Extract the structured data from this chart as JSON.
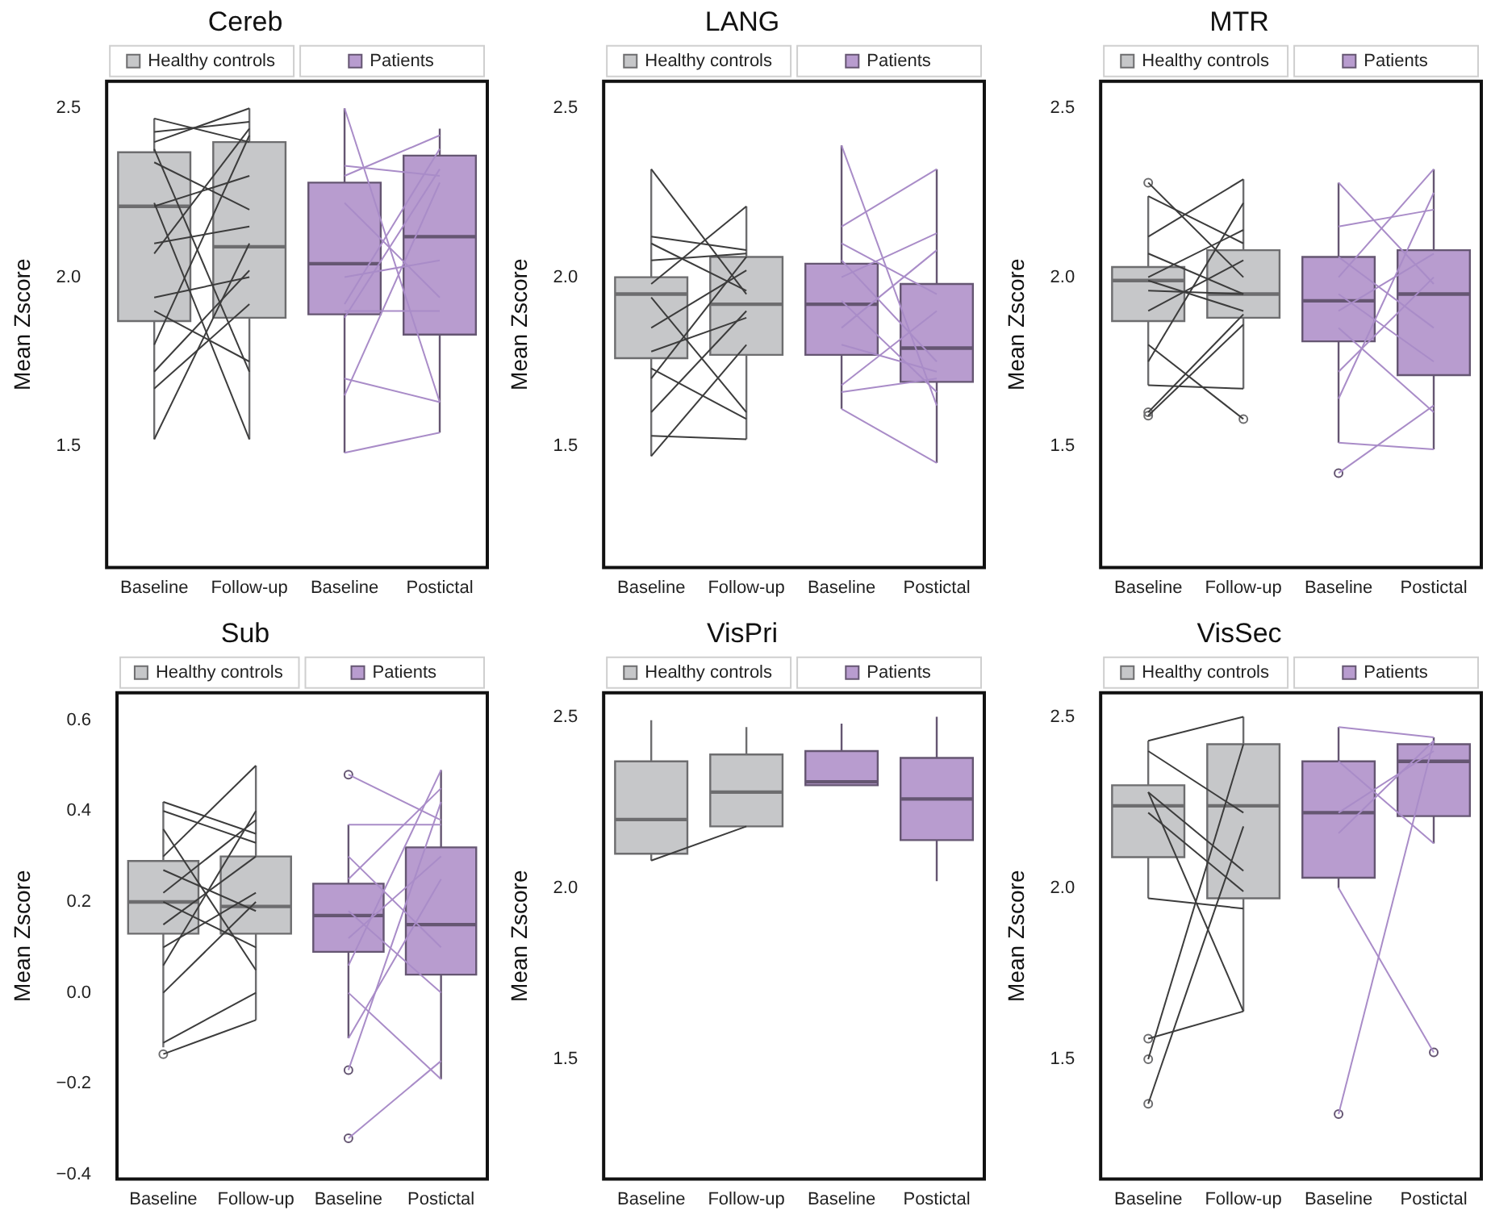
{
  "chart_data": [
    {
      "type": "box",
      "legend": "top",
      "title": "Cereb",
      "ylabel": "Mean Zscore",
      "categories": [
        "Baseline",
        "Follow-up",
        "Baseline",
        "Postictal"
      ],
      "ylim": [
        1.14,
        2.58
      ],
      "yticks": [
        1.5,
        {
          "value": 2,
          "label": "2.0"
        },
        2.5
      ],
      "series": [
        {
          "name": "Healthy controls",
          "color": "#c6c7c9",
          "boxes": [
            {
              "low": 1.52,
              "q1": 1.87,
              "median": 2.21,
              "q3": 2.37,
              "high": 2.47
            },
            {
              "low": 1.52,
              "q1": 1.88,
              "median": 2.09,
              "q3": 2.4,
              "high": 2.5
            },
            null,
            null
          ]
        },
        {
          "name": "Patients",
          "color": "#b89ccf",
          "boxes": [
            null,
            null,
            {
              "low": 1.48,
              "q1": 1.89,
              "median": 2.04,
              "q3": 2.28,
              "high": 2.5
            },
            {
              "low": 1.54,
              "q1": 1.83,
              "median": 2.12,
              "q3": 2.36,
              "high": 2.44
            }
          ]
        },
        {
          "type": "line",
          "color": "#3c3c3c",
          "values": [
            2.47,
            2.4,
            null,
            null
          ]
        },
        {
          "type": "line",
          "color": "#3c3c3c",
          "values": [
            2.43,
            2.46,
            null,
            null
          ]
        },
        {
          "type": "line",
          "color": "#3c3c3c",
          "values": [
            2.4,
            2.5,
            null,
            null
          ]
        },
        {
          "type": "line",
          "color": "#3c3c3c",
          "values": [
            2.38,
            1.72,
            null,
            null
          ]
        },
        {
          "type": "line",
          "color": "#3c3c3c",
          "values": [
            2.34,
            2.2,
            null,
            null
          ]
        },
        {
          "type": "line",
          "color": "#3c3c3c",
          "values": [
            2.22,
            1.52,
            null,
            null
          ]
        },
        {
          "type": "line",
          "color": "#3c3c3c",
          "values": [
            2.21,
            2.3,
            null,
            null
          ]
        },
        {
          "type": "line",
          "color": "#3c3c3c",
          "values": [
            2.1,
            2.15,
            null,
            null
          ]
        },
        {
          "type": "line",
          "color": "#3c3c3c",
          "values": [
            2.07,
            2.44,
            null,
            null
          ]
        },
        {
          "type": "line",
          "color": "#3c3c3c",
          "values": [
            1.94,
            2.0,
            null,
            null
          ]
        },
        {
          "type": "line",
          "color": "#3c3c3c",
          "values": [
            1.9,
            1.75,
            null,
            null
          ]
        },
        {
          "type": "line",
          "color": "#3c3c3c",
          "values": [
            1.8,
            2.42,
            null,
            null
          ]
        },
        {
          "type": "line",
          "color": "#3c3c3c",
          "values": [
            1.72,
            2.02,
            null,
            null
          ]
        },
        {
          "type": "line",
          "color": "#3c3c3c",
          "values": [
            1.67,
            1.92,
            null,
            null
          ]
        },
        {
          "type": "line",
          "color": "#3c3c3c",
          "values": [
            1.52,
            2.1,
            null,
            null
          ]
        },
        {
          "type": "line",
          "color": "#a98cc8",
          "values": [
            null,
            null,
            2.5,
            1.63
          ]
        },
        {
          "type": "line",
          "color": "#a98cc8",
          "values": [
            null,
            null,
            2.33,
            2.3
          ]
        },
        {
          "type": "line",
          "color": "#a98cc8",
          "values": [
            null,
            null,
            2.3,
            2.42
          ]
        },
        {
          "type": "line",
          "color": "#a98cc8",
          "values": [
            null,
            null,
            2.22,
            1.94
          ]
        },
        {
          "type": "line",
          "color": "#a98cc8",
          "values": [
            null,
            null,
            2.0,
            2.05
          ]
        },
        {
          "type": "line",
          "color": "#a98cc8",
          "values": [
            null,
            null,
            1.92,
            2.38
          ]
        },
        {
          "type": "line",
          "color": "#a98cc8",
          "values": [
            null,
            null,
            1.9,
            1.9
          ]
        },
        {
          "type": "line",
          "color": "#a98cc8",
          "values": [
            null,
            null,
            1.88,
            2.32
          ]
        },
        {
          "type": "line",
          "color": "#a98cc8",
          "values": [
            null,
            null,
            1.7,
            1.63
          ]
        },
        {
          "type": "line",
          "color": "#a98cc8",
          "values": [
            null,
            null,
            1.65,
            2.28
          ]
        },
        {
          "type": "line",
          "color": "#a98cc8",
          "values": [
            null,
            null,
            1.48,
            1.54
          ]
        }
      ]
    },
    {
      "type": "box",
      "legend": "top",
      "title": "LANG",
      "ylabel": "Mean Zscore",
      "categories": [
        "Baseline",
        "Follow-up",
        "Baseline",
        "Postictal"
      ],
      "ylim": [
        1.14,
        2.58
      ],
      "yticks": [
        1.5,
        {
          "value": 2,
          "label": "2.0"
        },
        2.5
      ],
      "series": [
        {
          "name": "Healthy controls",
          "color": "#c6c7c9",
          "boxes": [
            {
              "low": 1.47,
              "q1": 1.76,
              "median": 1.95,
              "q3": 2.0,
              "high": 2.32
            },
            {
              "low": 1.52,
              "q1": 1.77,
              "median": 1.92,
              "q3": 2.06,
              "high": 2.21
            },
            null,
            null
          ]
        },
        {
          "name": "Patients",
          "color": "#b89ccf",
          "boxes": [
            null,
            null,
            {
              "low": 1.61,
              "q1": 1.77,
              "median": 1.92,
              "q3": 2.04,
              "high": 2.39
            },
            {
              "low": 1.45,
              "q1": 1.69,
              "median": 1.79,
              "q3": 1.98,
              "high": 2.32
            }
          ]
        },
        {
          "type": "line",
          "color": "#3c3c3c",
          "values": [
            2.32,
            1.95,
            null,
            null
          ]
        },
        {
          "type": "line",
          "color": "#3c3c3c",
          "values": [
            2.12,
            2.08,
            null,
            null
          ]
        },
        {
          "type": "line",
          "color": "#3c3c3c",
          "values": [
            2.1,
            1.96,
            null,
            null
          ]
        },
        {
          "type": "line",
          "color": "#3c3c3c",
          "values": [
            2.05,
            2.07,
            null,
            null
          ]
        },
        {
          "type": "line",
          "color": "#3c3c3c",
          "values": [
            1.98,
            2.21,
            null,
            null
          ]
        },
        {
          "type": "line",
          "color": "#3c3c3c",
          "values": [
            1.94,
            1.6,
            null,
            null
          ]
        },
        {
          "type": "line",
          "color": "#3c3c3c",
          "values": [
            1.85,
            2.02,
            null,
            null
          ]
        },
        {
          "type": "line",
          "color": "#3c3c3c",
          "values": [
            1.78,
            1.88,
            null,
            null
          ]
        },
        {
          "type": "line",
          "color": "#3c3c3c",
          "values": [
            1.73,
            1.58,
            null,
            null
          ]
        },
        {
          "type": "line",
          "color": "#3c3c3c",
          "values": [
            1.7,
            2.06,
            null,
            null
          ]
        },
        {
          "type": "line",
          "color": "#3c3c3c",
          "values": [
            1.6,
            1.9,
            null,
            null
          ]
        },
        {
          "type": "line",
          "color": "#3c3c3c",
          "values": [
            1.53,
            1.52,
            null,
            null
          ]
        },
        {
          "type": "line",
          "color": "#3c3c3c",
          "values": [
            1.47,
            1.8,
            null,
            null
          ]
        },
        {
          "type": "line",
          "color": "#a98cc8",
          "values": [
            null,
            null,
            2.39,
            1.62
          ]
        },
        {
          "type": "line",
          "color": "#a98cc8",
          "values": [
            null,
            null,
            2.15,
            2.32
          ]
        },
        {
          "type": "line",
          "color": "#a98cc8",
          "values": [
            null,
            null,
            2.1,
            1.95
          ]
        },
        {
          "type": "line",
          "color": "#a98cc8",
          "values": [
            null,
            null,
            2.05,
            1.75
          ]
        },
        {
          "type": "line",
          "color": "#a98cc8",
          "values": [
            null,
            null,
            2.0,
            2.13
          ]
        },
        {
          "type": "line",
          "color": "#a98cc8",
          "values": [
            null,
            null,
            1.93,
            1.66
          ]
        },
        {
          "type": "line",
          "color": "#a98cc8",
          "values": [
            null,
            null,
            1.85,
            2.08
          ]
        },
        {
          "type": "line",
          "color": "#a98cc8",
          "values": [
            null,
            null,
            1.8,
            1.72
          ]
        },
        {
          "type": "line",
          "color": "#a98cc8",
          "values": [
            null,
            null,
            1.68,
            1.9
          ]
        },
        {
          "type": "line",
          "color": "#a98cc8",
          "values": [
            null,
            null,
            1.66,
            1.7
          ]
        },
        {
          "type": "line",
          "color": "#a98cc8",
          "values": [
            null,
            null,
            1.61,
            1.45
          ]
        }
      ]
    },
    {
      "type": "box",
      "legend": "top",
      "title": "MTR",
      "ylabel": "Mean Zscore",
      "categories": [
        "Baseline",
        "Follow-up",
        "Baseline",
        "Postictal"
      ],
      "ylim": [
        1.14,
        2.58
      ],
      "yticks": [
        1.5,
        {
          "value": 2,
          "label": "2.0"
        },
        2.5
      ],
      "series": [
        {
          "name": "Healthy controls",
          "color": "#c6c7c9",
          "boxes": [
            {
              "low": 1.68,
              "q1": 1.87,
              "median": 1.99,
              "q3": 2.03,
              "high": 2.24,
              "outliers": [
                2.28,
                1.6,
                1.59
              ]
            },
            {
              "low": 1.67,
              "q1": 1.88,
              "median": 1.95,
              "q3": 2.08,
              "high": 2.29,
              "outliers": [
                1.58
              ]
            },
            null,
            null
          ]
        },
        {
          "name": "Patients",
          "color": "#b89ccf",
          "boxes": [
            null,
            null,
            {
              "low": 1.51,
              "q1": 1.81,
              "median": 1.93,
              "q3": 2.06,
              "high": 2.28,
              "outliers": [
                1.42
              ]
            },
            {
              "low": 1.49,
              "q1": 1.71,
              "median": 1.95,
              "q3": 2.08,
              "high": 2.32
            }
          ]
        },
        {
          "type": "line",
          "color": "#3c3c3c",
          "values": [
            2.28,
            2.0,
            null,
            null
          ]
        },
        {
          "type": "line",
          "color": "#3c3c3c",
          "values": [
            2.24,
            2.1,
            null,
            null
          ]
        },
        {
          "type": "line",
          "color": "#3c3c3c",
          "values": [
            2.12,
            2.29,
            null,
            null
          ]
        },
        {
          "type": "line",
          "color": "#3c3c3c",
          "values": [
            2.07,
            1.95,
            null,
            null
          ]
        },
        {
          "type": "line",
          "color": "#3c3c3c",
          "values": [
            2.0,
            2.14,
            null,
            null
          ]
        },
        {
          "type": "line",
          "color": "#3c3c3c",
          "values": [
            1.99,
            1.9,
            null,
            null
          ]
        },
        {
          "type": "line",
          "color": "#3c3c3c",
          "values": [
            1.96,
            1.95,
            null,
            null
          ]
        },
        {
          "type": "line",
          "color": "#3c3c3c",
          "values": [
            1.9,
            2.05,
            null,
            null
          ]
        },
        {
          "type": "line",
          "color": "#3c3c3c",
          "values": [
            1.8,
            1.58,
            null,
            null
          ]
        },
        {
          "type": "line",
          "color": "#3c3c3c",
          "values": [
            1.75,
            2.22,
            null,
            null
          ]
        },
        {
          "type": "line",
          "color": "#3c3c3c",
          "values": [
            1.68,
            1.67,
            null,
            null
          ]
        },
        {
          "type": "line",
          "color": "#3c3c3c",
          "values": [
            1.6,
            1.89,
            null,
            null
          ]
        },
        {
          "type": "line",
          "color": "#3c3c3c",
          "values": [
            1.59,
            1.86,
            null,
            null
          ]
        },
        {
          "type": "line",
          "color": "#a98cc8",
          "values": [
            null,
            null,
            2.28,
            1.98
          ]
        },
        {
          "type": "line",
          "color": "#a98cc8",
          "values": [
            null,
            null,
            2.15,
            2.2
          ]
        },
        {
          "type": "line",
          "color": "#a98cc8",
          "values": [
            null,
            null,
            2.06,
            1.85
          ]
        },
        {
          "type": "line",
          "color": "#a98cc8",
          "values": [
            null,
            null,
            2.0,
            2.32
          ]
        },
        {
          "type": "line",
          "color": "#a98cc8",
          "values": [
            null,
            null,
            1.95,
            1.75
          ]
        },
        {
          "type": "line",
          "color": "#a98cc8",
          "values": [
            null,
            null,
            1.9,
            2.07
          ]
        },
        {
          "type": "line",
          "color": "#a98cc8",
          "values": [
            null,
            null,
            1.85,
            1.6
          ]
        },
        {
          "type": "line",
          "color": "#a98cc8",
          "values": [
            null,
            null,
            1.72,
            2.0
          ]
        },
        {
          "type": "line",
          "color": "#a98cc8",
          "values": [
            null,
            null,
            1.64,
            2.25
          ]
        },
        {
          "type": "line",
          "color": "#a98cc8",
          "values": [
            null,
            null,
            1.51,
            1.49
          ]
        },
        {
          "type": "line",
          "color": "#a98cc8",
          "values": [
            null,
            null,
            1.42,
            1.62
          ]
        }
      ]
    },
    {
      "type": "box",
      "legend": "top",
      "title": "Sub",
      "ylabel": "Mean Zscore",
      "categories": [
        "Baseline",
        "Follow-up",
        "Baseline",
        "Postictal"
      ],
      "ylim": [
        -0.41,
        0.66
      ],
      "yticks": [
        {
          "value": -0.4,
          "label": "−0.4"
        },
        {
          "value": -0.2,
          "label": "−0.2"
        },
        {
          "value": 0,
          "label": "0.0"
        },
        0.2,
        0.4,
        0.6
      ],
      "series": [
        {
          "name": "Healthy controls",
          "color": "#c6c7c9",
          "boxes": [
            {
              "low": -0.12,
              "q1": 0.13,
              "median": 0.2,
              "q3": 0.29,
              "high": 0.42,
              "outliers": [
                -0.135
              ]
            },
            {
              "low": -0.06,
              "q1": 0.13,
              "median": 0.19,
              "q3": 0.3,
              "high": 0.5
            },
            null,
            null
          ]
        },
        {
          "name": "Patients",
          "color": "#b89ccf",
          "boxes": [
            null,
            null,
            {
              "low": -0.1,
              "q1": 0.09,
              "median": 0.17,
              "q3": 0.24,
              "high": 0.37,
              "outliers": [
                0.48,
                -0.17,
                -0.32
              ]
            },
            {
              "low": -0.19,
              "q1": 0.04,
              "median": 0.15,
              "q3": 0.32,
              "high": 0.49
            }
          ]
        },
        {
          "type": "line",
          "color": "#3c3c3c",
          "values": [
            0.42,
            0.35,
            null,
            null
          ]
        },
        {
          "type": "line",
          "color": "#3c3c3c",
          "values": [
            0.4,
            0.33,
            null,
            null
          ]
        },
        {
          "type": "line",
          "color": "#3c3c3c",
          "values": [
            0.36,
            0.05,
            null,
            null
          ]
        },
        {
          "type": "line",
          "color": "#3c3c3c",
          "values": [
            0.3,
            0.5,
            null,
            null
          ]
        },
        {
          "type": "line",
          "color": "#3c3c3c",
          "values": [
            0.27,
            0.18,
            null,
            null
          ]
        },
        {
          "type": "line",
          "color": "#3c3c3c",
          "values": [
            0.22,
            0.38,
            null,
            null
          ]
        },
        {
          "type": "line",
          "color": "#3c3c3c",
          "values": [
            0.2,
            0.1,
            null,
            null
          ]
        },
        {
          "type": "line",
          "color": "#3c3c3c",
          "values": [
            0.15,
            0.3,
            null,
            null
          ]
        },
        {
          "type": "line",
          "color": "#3c3c3c",
          "values": [
            0.1,
            0.22,
            null,
            null
          ]
        },
        {
          "type": "line",
          "color": "#3c3c3c",
          "values": [
            0.06,
            0.4,
            null,
            null
          ]
        },
        {
          "type": "line",
          "color": "#3c3c3c",
          "values": [
            0.0,
            0.2,
            null,
            null
          ]
        },
        {
          "type": "line",
          "color": "#3c3c3c",
          "values": [
            -0.11,
            0.0,
            null,
            null
          ]
        },
        {
          "type": "line",
          "color": "#3c3c3c",
          "values": [
            -0.135,
            -0.06,
            null,
            null
          ]
        },
        {
          "type": "line",
          "color": "#a98cc8",
          "values": [
            null,
            null,
            0.48,
            0.38
          ]
        },
        {
          "type": "line",
          "color": "#a98cc8",
          "values": [
            null,
            null,
            0.37,
            0.37
          ]
        },
        {
          "type": "line",
          "color": "#a98cc8",
          "values": [
            null,
            null,
            0.3,
            0.1
          ]
        },
        {
          "type": "line",
          "color": "#a98cc8",
          "values": [
            null,
            null,
            0.25,
            0.45
          ]
        },
        {
          "type": "line",
          "color": "#a98cc8",
          "values": [
            null,
            null,
            0.18,
            0.0
          ]
        },
        {
          "type": "line",
          "color": "#a98cc8",
          "values": [
            null,
            null,
            0.12,
            0.3
          ]
        },
        {
          "type": "line",
          "color": "#a98cc8",
          "values": [
            null,
            null,
            0.06,
            0.49
          ]
        },
        {
          "type": "line",
          "color": "#a98cc8",
          "values": [
            null,
            null,
            0.0,
            -0.19
          ]
        },
        {
          "type": "line",
          "color": "#a98cc8",
          "values": [
            null,
            null,
            -0.1,
            0.25
          ]
        },
        {
          "type": "line",
          "color": "#a98cc8",
          "values": [
            null,
            null,
            -0.17,
            0.42
          ]
        },
        {
          "type": "line",
          "color": "#a98cc8",
          "values": [
            null,
            null,
            -0.32,
            -0.15
          ]
        }
      ]
    },
    {
      "type": "box",
      "legend": "top",
      "title": "VisPri",
      "ylabel": "Mean Zscore",
      "categories": [
        "Baseline",
        "Follow-up",
        "Baseline",
        "Postictal"
      ],
      "ylim": [
        1.15,
        2.57
      ],
      "yticks": [
        1.5,
        {
          "value": 2,
          "label": "2.0"
        },
        2.5
      ],
      "series": [
        {
          "name": "Healthy controls",
          "color": "#c6c7c9",
          "boxes": [
            {
              "low": 2.08,
              "q1": 2.1,
              "median": 2.2,
              "q3": 2.37,
              "high": 2.49
            },
            {
              "low": 2.18,
              "q1": 2.18,
              "median": 2.28,
              "q3": 2.39,
              "high": 2.47
            },
            null,
            null
          ]
        },
        {
          "name": "Patients",
          "color": "#b89ccf",
          "boxes": [
            null,
            null,
            {
              "low": 2.3,
              "q1": 2.3,
              "median": 2.31,
              "q3": 2.4,
              "high": 2.48
            },
            {
              "low": 2.02,
              "q1": 2.14,
              "median": 2.26,
              "q3": 2.38,
              "high": 2.5
            }
          ]
        },
        {
          "type": "line",
          "color": "#3c3c3c",
          "values": [
            2.08,
            2.18,
            null,
            null
          ]
        }
      ]
    },
    {
      "type": "box",
      "legend": "top",
      "title": "VisSec",
      "ylabel": "Mean Zscore",
      "categories": [
        "Baseline",
        "Follow-up",
        "Baseline",
        "Postictal"
      ],
      "ylim": [
        1.15,
        2.57
      ],
      "yticks": [
        1.5,
        {
          "value": 2,
          "label": "2.0"
        },
        2.5
      ],
      "series": [
        {
          "name": "Healthy controls",
          "color": "#c6c7c9",
          "boxes": [
            {
              "low": 1.97,
              "q1": 2.09,
              "median": 2.24,
              "q3": 2.3,
              "high": 2.43,
              "outliers": [
                1.56,
                1.5,
                1.37
              ]
            },
            {
              "low": 1.64,
              "q1": 1.97,
              "median": 2.24,
              "q3": 2.42,
              "high": 2.5
            },
            null,
            null
          ]
        },
        {
          "name": "Patients",
          "color": "#b89ccf",
          "boxes": [
            null,
            null,
            {
              "low": 2.0,
              "q1": 2.03,
              "median": 2.22,
              "q3": 2.37,
              "high": 2.47,
              "outliers": [
                1.34
              ]
            },
            {
              "low": 2.13,
              "q1": 2.21,
              "median": 2.37,
              "q3": 2.42,
              "high": 2.44,
              "outliers": [
                1.52
              ]
            }
          ]
        },
        {
          "type": "line",
          "color": "#3c3c3c",
          "values": [
            2.43,
            2.5,
            null,
            null
          ]
        },
        {
          "type": "line",
          "color": "#3c3c3c",
          "values": [
            2.4,
            2.22,
            null,
            null
          ]
        },
        {
          "type": "line",
          "color": "#3c3c3c",
          "values": [
            2.28,
            2.05,
            null,
            null
          ]
        },
        {
          "type": "line",
          "color": "#3c3c3c",
          "values": [
            2.22,
            1.99,
            null,
            null
          ]
        },
        {
          "type": "line",
          "color": "#3c3c3c",
          "values": [
            1.97,
            1.94,
            null,
            null
          ]
        },
        {
          "type": "line",
          "color": "#3c3c3c",
          "values": [
            2.28,
            1.64,
            null,
            null
          ]
        },
        {
          "type": "line",
          "color": "#3c3c3c",
          "values": [
            1.56,
            1.64,
            null,
            null
          ]
        },
        {
          "type": "line",
          "color": "#3c3c3c",
          "values": [
            1.5,
            2.42,
            null,
            null
          ]
        },
        {
          "type": "line",
          "color": "#3c3c3c",
          "values": [
            1.37,
            2.18,
            null,
            null
          ]
        },
        {
          "type": "line",
          "color": "#a98cc8",
          "values": [
            null,
            null,
            2.47,
            2.44
          ]
        },
        {
          "type": "line",
          "color": "#a98cc8",
          "values": [
            null,
            null,
            2.37,
            2.13
          ]
        },
        {
          "type": "line",
          "color": "#a98cc8",
          "values": [
            null,
            null,
            2.22,
            2.4
          ]
        },
        {
          "type": "line",
          "color": "#a98cc8",
          "values": [
            null,
            null,
            2.16,
            2.43
          ]
        },
        {
          "type": "line",
          "color": "#a98cc8",
          "values": [
            null,
            null,
            2.0,
            1.52
          ]
        },
        {
          "type": "line",
          "color": "#a98cc8",
          "values": [
            null,
            null,
            1.34,
            2.43
          ]
        }
      ]
    }
  ]
}
